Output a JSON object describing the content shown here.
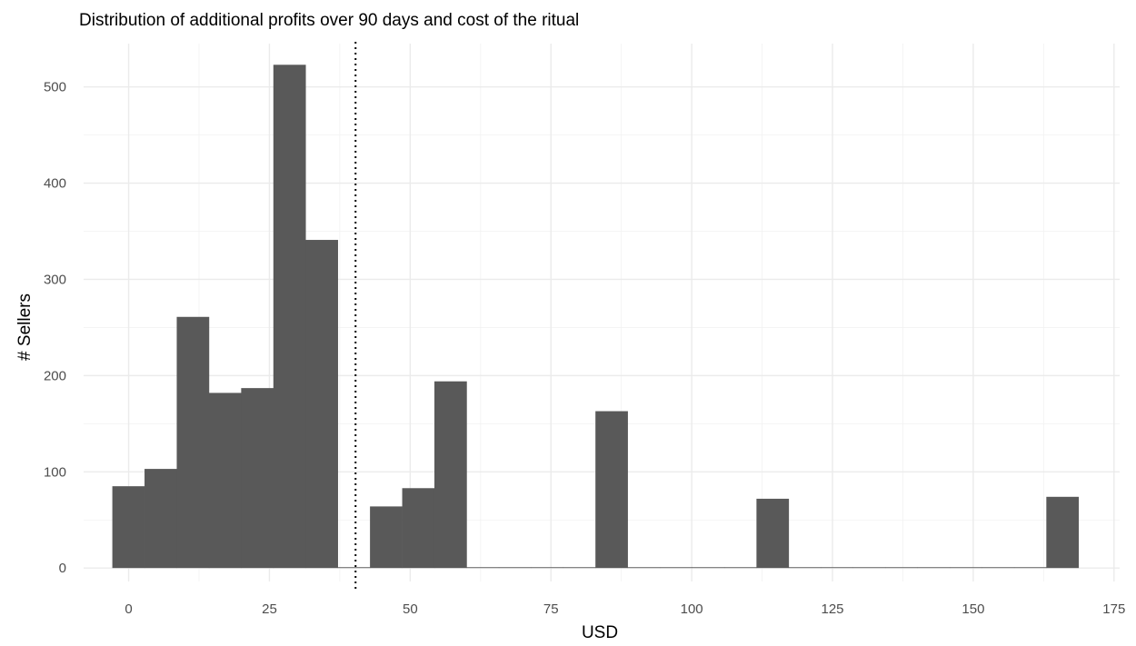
{
  "chart_data": {
    "type": "bar",
    "title": "Distribution of additional profits over 90 days and cost of the ritual",
    "xlabel": "USD",
    "ylabel": "# Sellers",
    "xlim": [
      -8,
      176
    ],
    "ylim": [
      -14,
      545
    ],
    "x_ticks": [
      0,
      25,
      50,
      75,
      100,
      125,
      150,
      175
    ],
    "y_ticks": [
      0,
      100,
      200,
      300,
      400,
      500
    ],
    "bin_width": 5.72,
    "bins": [
      {
        "x0": -2.9,
        "count": 85
      },
      {
        "x0": 2.82,
        "count": 103
      },
      {
        "x0": 8.54,
        "count": 261
      },
      {
        "x0": 14.26,
        "count": 182
      },
      {
        "x0": 19.98,
        "count": 187
      },
      {
        "x0": 25.7,
        "count": 523
      },
      {
        "x0": 31.42,
        "count": 341
      },
      {
        "x0": 37.14,
        "count": 0
      },
      {
        "x0": 42.86,
        "count": 64
      },
      {
        "x0": 48.58,
        "count": 83
      },
      {
        "x0": 54.3,
        "count": 194
      },
      {
        "x0": 60.02,
        "count": 0
      },
      {
        "x0": 65.74,
        "count": 0
      },
      {
        "x0": 71.46,
        "count": 0
      },
      {
        "x0": 77.18,
        "count": 0
      },
      {
        "x0": 82.9,
        "count": 163
      },
      {
        "x0": 88.62,
        "count": 0
      },
      {
        "x0": 94.34,
        "count": 0
      },
      {
        "x0": 100.06,
        "count": 0
      },
      {
        "x0": 105.78,
        "count": 0
      },
      {
        "x0": 111.5,
        "count": 72
      },
      {
        "x0": 117.22,
        "count": 0
      },
      {
        "x0": 122.94,
        "count": 0
      },
      {
        "x0": 128.66,
        "count": 0
      },
      {
        "x0": 134.38,
        "count": 0
      },
      {
        "x0": 140.1,
        "count": 0
      },
      {
        "x0": 145.82,
        "count": 0
      },
      {
        "x0": 151.54,
        "count": 0
      },
      {
        "x0": 157.26,
        "count": 0
      },
      {
        "x0": 162.98,
        "count": 74
      }
    ],
    "reference_line": {
      "x": 40.3,
      "style": "dotted"
    },
    "bar_color": "#595959",
    "grid": true
  }
}
